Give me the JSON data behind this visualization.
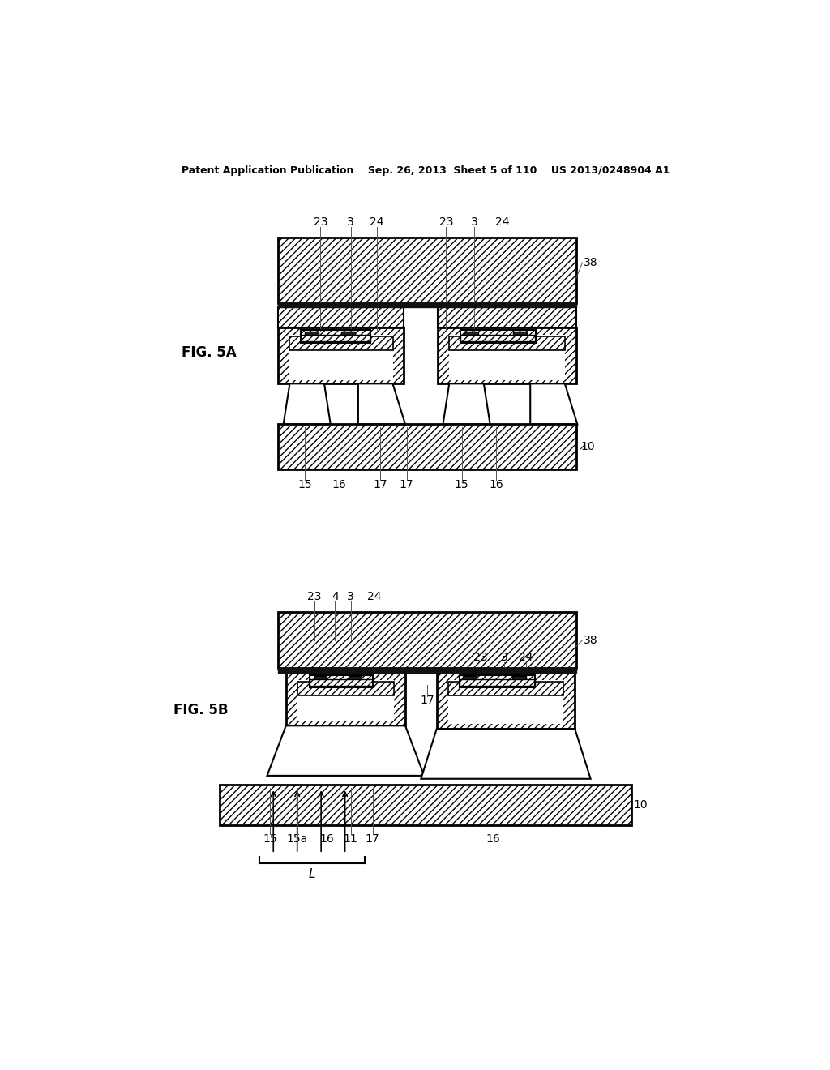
{
  "bg_color": "#ffffff",
  "header": "Patent Application Publication    Sep. 26, 2013  Sheet 5 of 110    US 2013/0248904 A1",
  "fig5a_label": "FIG. 5A",
  "fig5b_label": "FIG. 5B"
}
